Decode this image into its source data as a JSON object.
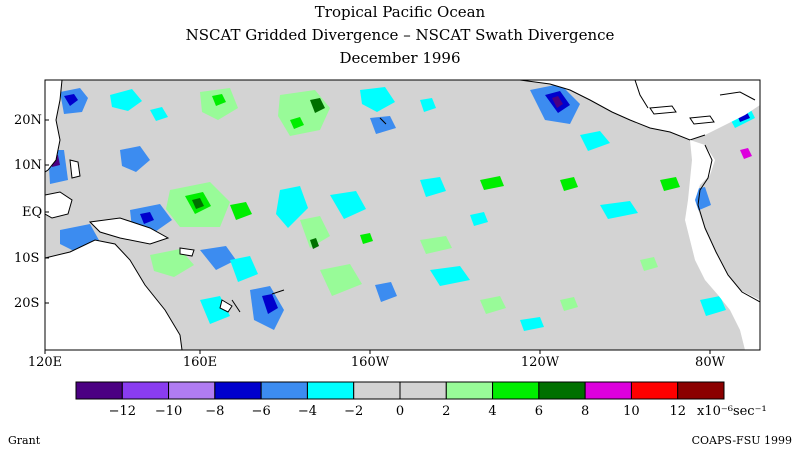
{
  "title_lines": [
    "Tropical Pacific Ocean",
    "NSCAT Gridded Divergence – NSCAT Swath Divergence",
    "December 1996"
  ],
  "lat_labels": [
    "20N",
    "10N",
    "EQ",
    "10S",
    "20S"
  ],
  "lon_labels": [
    "120E",
    "160E",
    "160W",
    "120W",
    "80W"
  ],
  "colorbar": {
    "colors": [
      "#4b0082",
      "#8a3cf0",
      "#b07cf2",
      "#0000cd",
      "#3c8cf0",
      "#00ffff",
      "#d3d3d3",
      "#d3d3d3",
      "#98fb98",
      "#00ee00",
      "#007000",
      "#dd00dd",
      "#ff0000",
      "#8b0000"
    ],
    "tick_labels": [
      "−12",
      "−10",
      "−8",
      "−6",
      "−4",
      "−2",
      "0",
      "2",
      "4",
      "6",
      "8",
      "10",
      "12"
    ],
    "units": "x10⁻⁶sec⁻¹"
  },
  "footer_left": "Grant",
  "footer_right": "COAPS-FSU 1999",
  "colors": {
    "land": "#ffffff",
    "ocean_zero": "#d3d3d3"
  }
}
